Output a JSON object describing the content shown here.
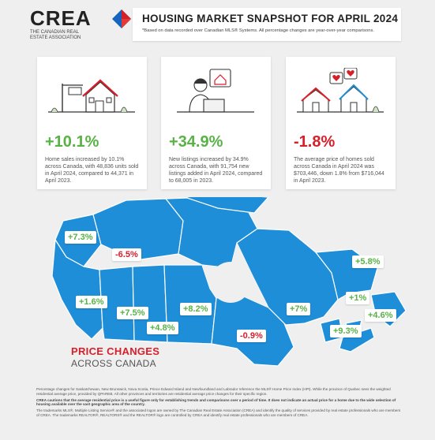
{
  "logo": {
    "name": "CREA",
    "subtitle": "THE CANADIAN REAL ESTATE ASSOCIATION"
  },
  "header": {
    "title": "HOUSING MARKET SNAPSHOT FOR APRIL 2024",
    "note": "*Based on data recorded over Canadian MLS® Systems. All percentage changes are year-over-year comparisons."
  },
  "cards": [
    {
      "stat": "+10.1%",
      "desc": "Home sales increased by 10.1% across Canada, with 48,836 units sold in April 2024, compared to 44,371 in April 2023.",
      "color": "#58b246",
      "icon": "house-sign-icon"
    },
    {
      "stat": "+34.9%",
      "desc": "New listings increased by 34.9% across Canada, with 91,754 new listings added in April 2024, compared to 68,005 in 2023.",
      "color": "#58b246",
      "icon": "person-computer-icon"
    },
    {
      "stat": "-1.8%",
      "desc": "The average price of homes sold across Canada in April 2024 was $703,446, down 1.8% from $716,044 in April 2023.",
      "color": "#d71f2a",
      "icon": "houses-hearts-icon"
    }
  ],
  "map": {
    "title": "PRICE CHANGES",
    "subtitle": "ACROSS CANADA",
    "regions": [
      {
        "label": "+7.3%",
        "sign": "pos"
      },
      {
        "label": "-6.5%",
        "sign": "neg"
      },
      {
        "label": "+1.6%",
        "sign": "pos"
      },
      {
        "label": "+7.5%",
        "sign": "pos"
      },
      {
        "label": "+4.8%",
        "sign": "pos"
      },
      {
        "label": "+8.2%",
        "sign": "pos"
      },
      {
        "label": "-0.9%",
        "sign": "neg"
      },
      {
        "label": "+7%",
        "sign": "pos"
      },
      {
        "label": "+5.8%",
        "sign": "pos"
      },
      {
        "label": "+1%",
        "sign": "pos"
      },
      {
        "label": "+4.6%",
        "sign": "pos"
      },
      {
        "label": "+9.3%",
        "sign": "pos"
      }
    ]
  },
  "footer": {
    "p1": "Percentage changes for Saskatchewan, New Brunswick, Nova Scotia, Prince Edward Island and Newfoundland and Labrador reference the MLS® Home Price Index (HPI). While the province of Quebec sees the weighted residential average price, provided by QPAREB. All other provinces and territories are residential average price changes for their specific region.",
    "p2": "CREA cautions that the average residential price is a useful figure only for establishing trends and comparisons over a period of time. It does not indicate an actual price for a home due to the wide selection of housing available over the vast geographic area of the country.",
    "p3": "The trademarks MLS®, Multiple Listing Service® and the associated logos are owned by The Canadian Real Estate Association (CREA) and identify the quality of services provided by real estate professionals who are members of CREA. The trademarks REALTOR®, REALTORS® and the REALTOR® logo are controlled by CREA and identify real estate professionals who are members of CREA."
  },
  "colors": {
    "positive": "#58b246",
    "negative": "#d71f2a",
    "map_blue": "#1e8ed8",
    "brand_blue": "#1565c0"
  }
}
